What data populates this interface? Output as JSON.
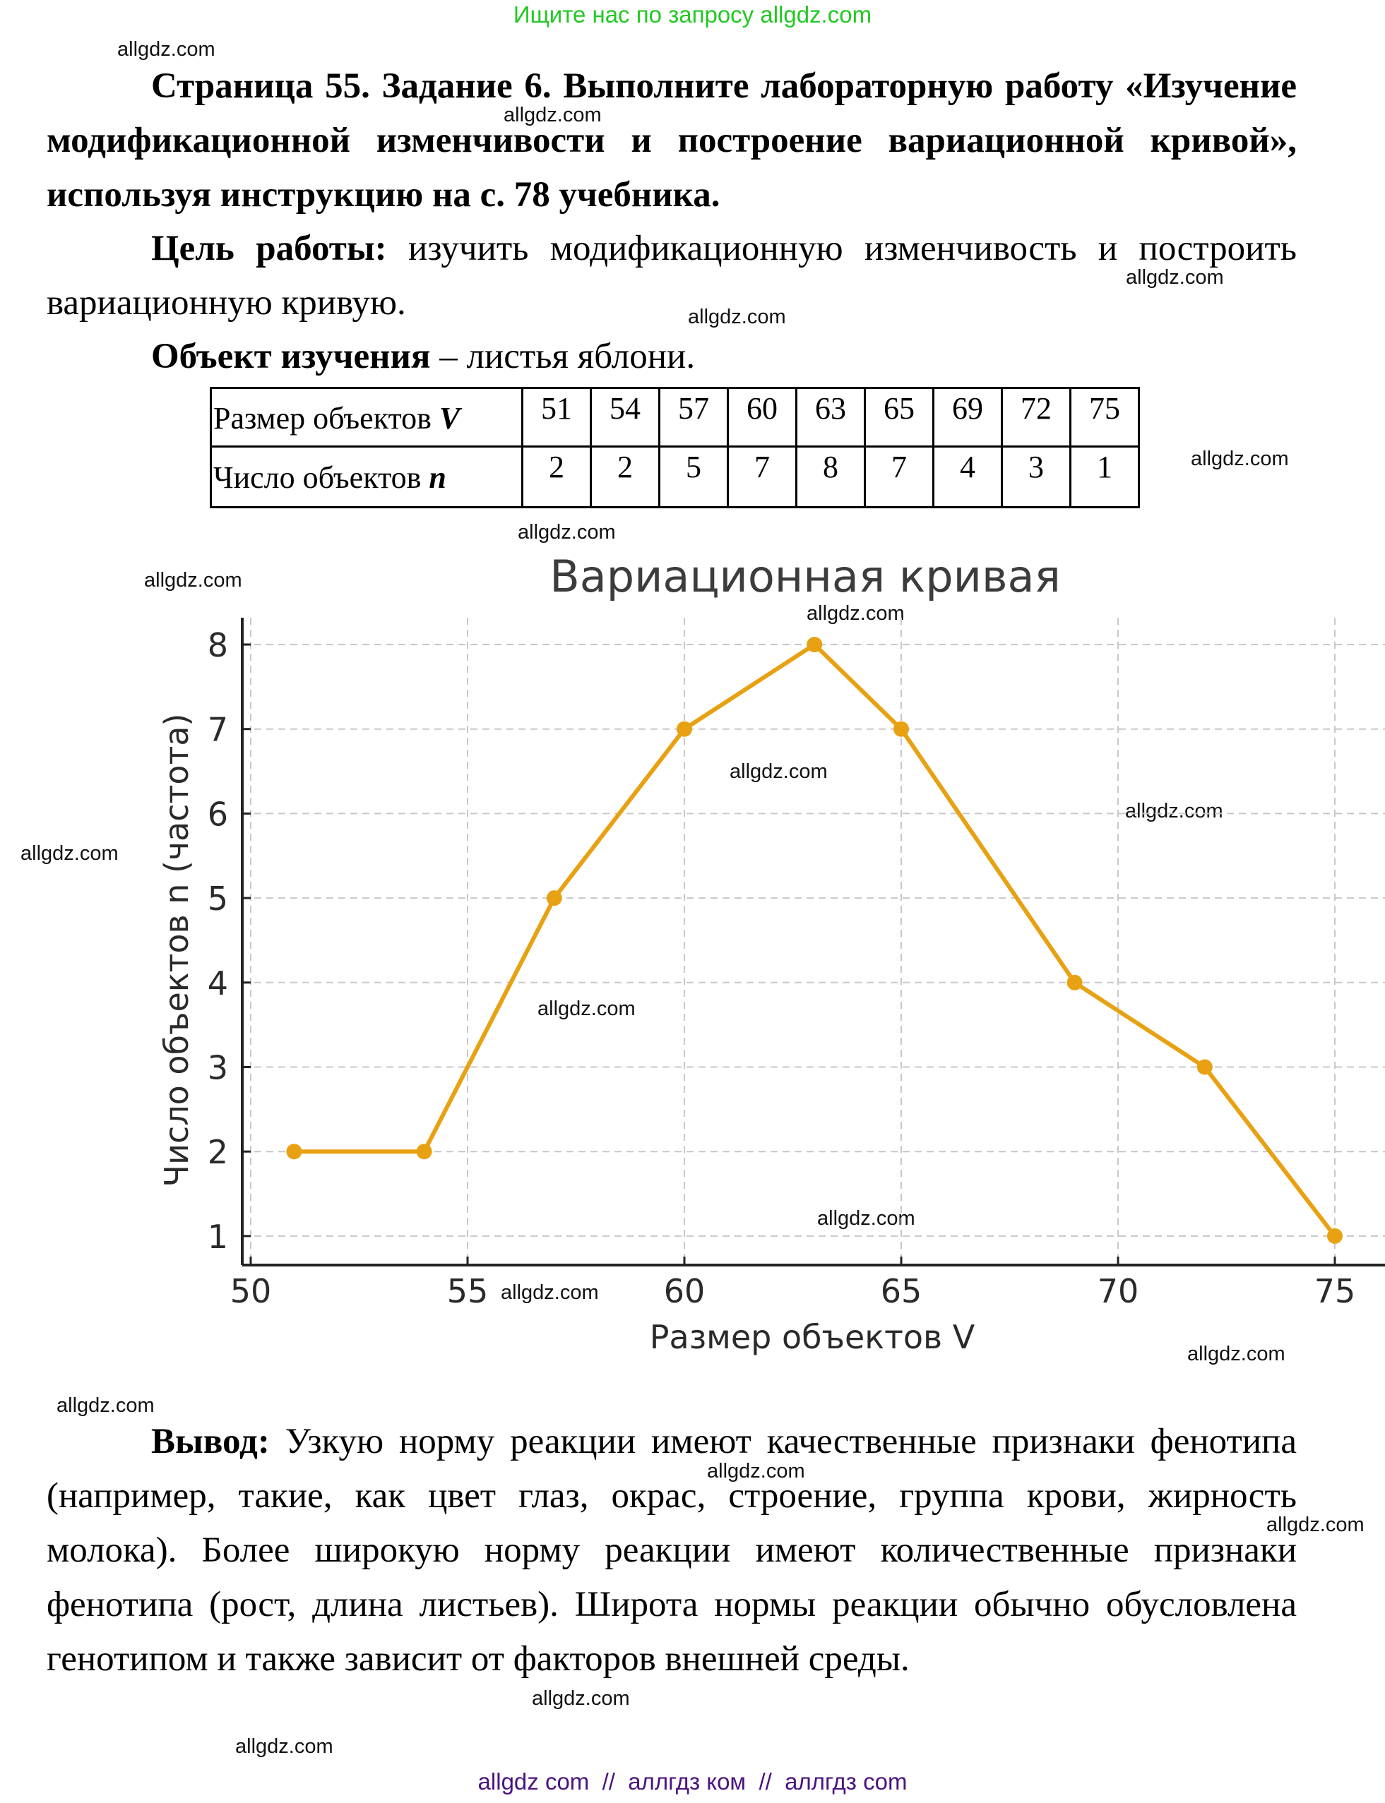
{
  "header": {
    "banner": "Ищите нас по запросу allgdz.com"
  },
  "task": {
    "title_bold": "Страница 55. Задание 6. Выполните лабораторную работу «Изучение модификационной изменчивости и построение вариационной кривой», используя инструкцию на с. 78 учебника.",
    "goal_label": "Цель работы:",
    "goal_text": " изучить модификационную изменчивость и построить вариационную кривую.",
    "object_label": "Объект изучения",
    "object_text": " – листья яблони."
  },
  "table": {
    "row1_label": "Размер объектов ",
    "row1_var": "V",
    "row2_label": "Число объектов ",
    "row2_var": "n",
    "V": [
      "51",
      "54",
      "57",
      "60",
      "63",
      "65",
      "69",
      "72",
      "75"
    ],
    "n": [
      "2",
      "2",
      "5",
      "7",
      "8",
      "7",
      "4",
      "3",
      "1"
    ]
  },
  "chart_data": {
    "type": "line",
    "title": "Вариационная кривая",
    "xlabel": "Размер объектов V",
    "ylabel": "Число объектов n (частота)",
    "x": [
      51,
      54,
      57,
      60,
      63,
      65,
      69,
      72,
      75
    ],
    "values": [
      2,
      2,
      5,
      7,
      8,
      7,
      4,
      3,
      1
    ],
    "xticks": [
      "50",
      "55",
      "60",
      "65",
      "70",
      "75"
    ],
    "yticks": [
      "1",
      "2",
      "3",
      "4",
      "5",
      "6",
      "7",
      "8"
    ],
    "xlim": [
      49.7,
      76.9
    ],
    "ylim": [
      0.7,
      8.3
    ],
    "grid": true,
    "line_color": "#E8A112",
    "marker": "circle"
  },
  "conclusion": {
    "label": "Вывод:",
    "text": " Узкую норму реакции имеют качественные признаки фенотипа (например, такие, как цвет глаз, окрас, строение, группа крови, жирность молока). Более широкую норму реакции имеют количественные признаки фенотипа (рост, длина листьев). Широта нормы реакции обычно обусловлена генотипом и также зависит от факторов внешней среды."
  },
  "watermark": "allgdz.com",
  "footer": {
    "text": "allgdz com  //  аллгдз ком  //  аллгдз com"
  }
}
